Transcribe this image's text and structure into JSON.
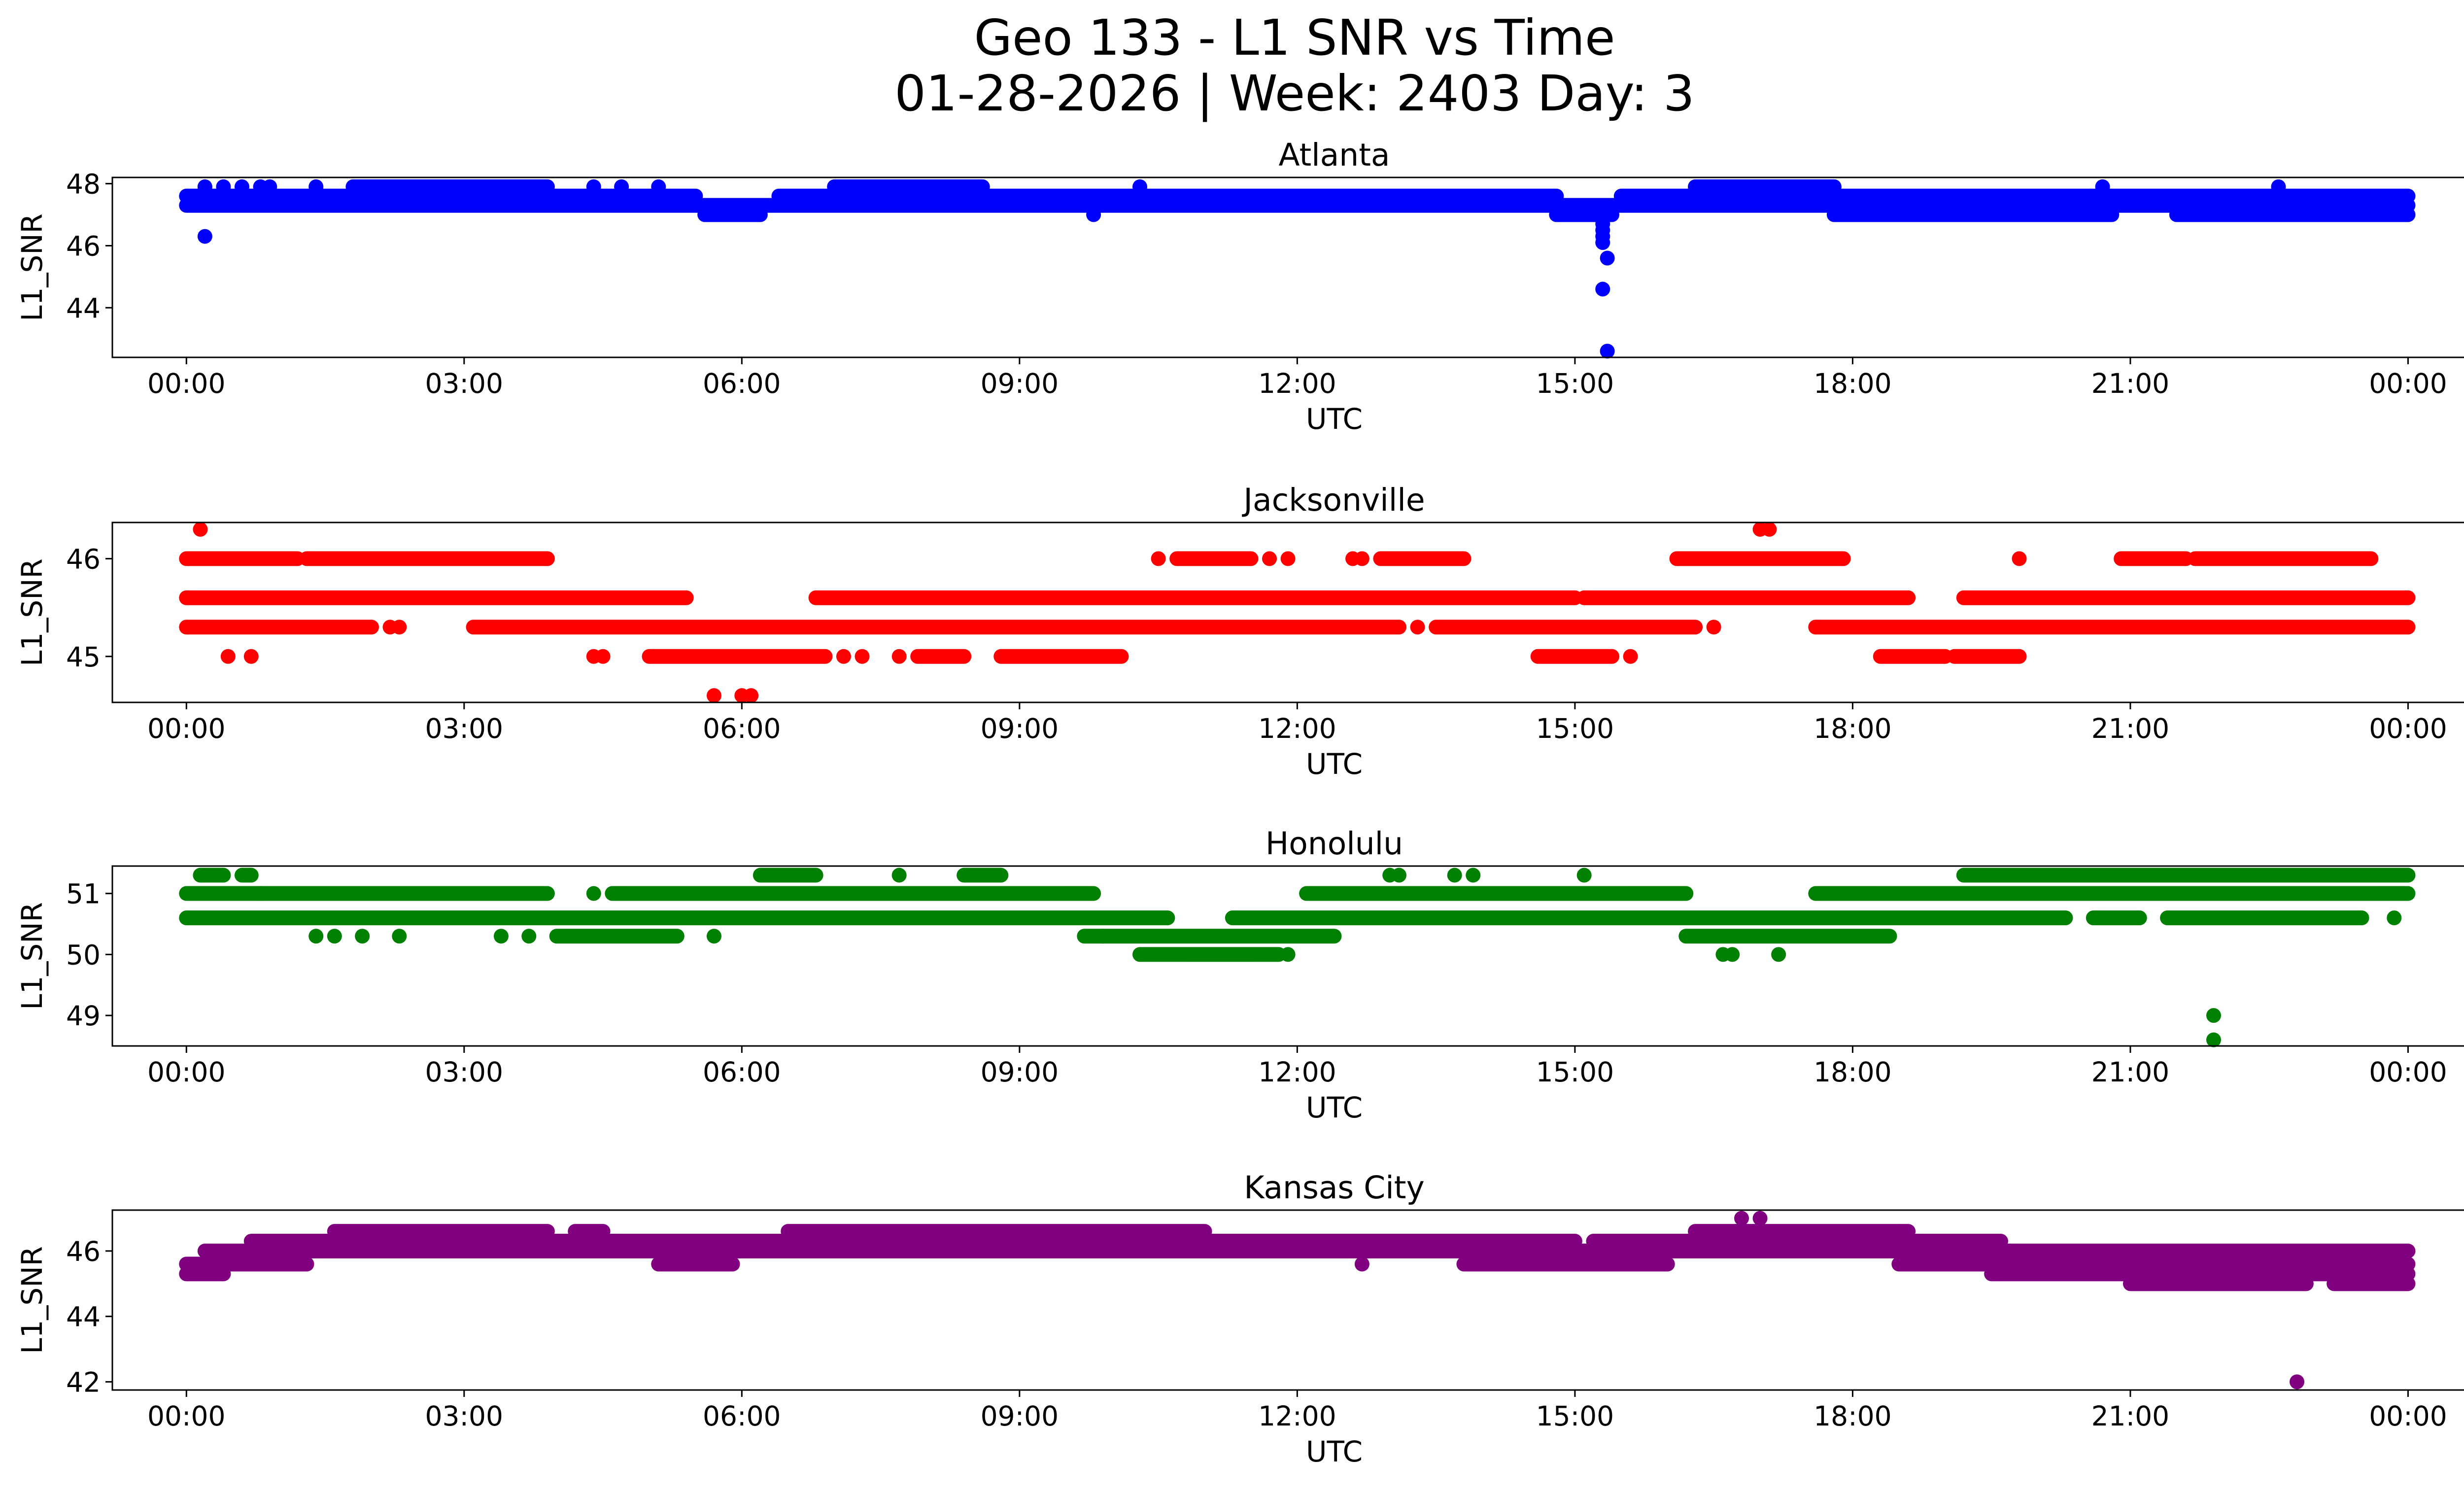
{
  "title_line1": "Geo 133 - L1 SNR vs Time",
  "title_line2": "01-28-2026 | Week: 2403 Day: 3",
  "chart_data": [
    {
      "type": "scatter",
      "title": "Atlanta",
      "xlabel": "UTC",
      "ylabel": "L1_SNR",
      "color": "#0000ff",
      "xlim": [
        -0.8,
        25.6
      ],
      "ylim": [
        42.4,
        48.2
      ],
      "xticks": [
        0,
        3,
        6,
        9,
        12,
        15,
        18,
        21,
        24
      ],
      "xtick_labels": [
        "00:00",
        "03:00",
        "06:00",
        "09:00",
        "12:00",
        "15:00",
        "18:00",
        "21:00",
        "00:00"
      ],
      "yticks": [
        44,
        46,
        48
      ],
      "ytick_labels": [
        "44",
        "46",
        "48"
      ],
      "bands": [
        {
          "y": 47.3,
          "ranges": [
            [
              0,
              24
            ]
          ]
        },
        {
          "y": 47.6,
          "ranges": [
            [
              0,
              5.5
            ],
            [
              6.4,
              14.8
            ],
            [
              15.5,
              24
            ]
          ]
        },
        {
          "y": 47.9,
          "ranges": [
            [
              1.8,
              3.9
            ],
            [
              7.0,
              8.6
            ],
            [
              16.3,
              17.8
            ]
          ]
        },
        {
          "y": 47.0,
          "ranges": [
            [
              5.6,
              6.2
            ],
            [
              14.8,
              15.4
            ],
            [
              17.8,
              20.8
            ],
            [
              21.5,
              24
            ]
          ]
        }
      ],
      "points": [
        {
          "x": 0.2,
          "y": 46.3
        },
        {
          "x": 0.2,
          "y": 47.9
        },
        {
          "x": 0.4,
          "y": 47.9
        },
        {
          "x": 0.6,
          "y": 47.9
        },
        {
          "x": 0.8,
          "y": 47.9
        },
        {
          "x": 0.9,
          "y": 47.9
        },
        {
          "x": 1.4,
          "y": 47.9
        },
        {
          "x": 4.4,
          "y": 47.9
        },
        {
          "x": 4.7,
          "y": 47.9
        },
        {
          "x": 5.1,
          "y": 47.9
        },
        {
          "x": 9.8,
          "y": 47.0
        },
        {
          "x": 10.3,
          "y": 47.9
        },
        {
          "x": 20.7,
          "y": 47.9
        },
        {
          "x": 22.6,
          "y": 47.9
        },
        {
          "x": 15.1,
          "y": 47.0
        },
        {
          "x": 15.3,
          "y": 46.9
        },
        {
          "x": 15.3,
          "y": 46.7
        },
        {
          "x": 15.3,
          "y": 46.5
        },
        {
          "x": 15.3,
          "y": 46.3
        },
        {
          "x": 15.3,
          "y": 46.1
        },
        {
          "x": 15.35,
          "y": 45.6
        },
        {
          "x": 15.3,
          "y": 44.6
        },
        {
          "x": 15.35,
          "y": 42.6
        }
      ]
    },
    {
      "type": "scatter",
      "title": "Jacksonville",
      "xlabel": "UTC",
      "ylabel": "L1_SNR",
      "color": "#ff0000",
      "xlim": [
        -0.8,
        25.6
      ],
      "ylim": [
        44.53,
        46.37
      ],
      "xticks": [
        0,
        3,
        6,
        9,
        12,
        15,
        18,
        21,
        24
      ],
      "xtick_labels": [
        "00:00",
        "03:00",
        "06:00",
        "09:00",
        "12:00",
        "15:00",
        "18:00",
        "21:00",
        "00:00"
      ],
      "yticks": [
        45,
        46
      ],
      "ytick_labels": [
        "45",
        "46"
      ],
      "bands": [
        {
          "y": 46.0,
          "ranges": [
            [
              0,
              1.2
            ],
            [
              1.3,
              3.9
            ],
            [
              10.7,
              11.5
            ],
            [
              12.9,
              13.8
            ],
            [
              16.1,
              17.9
            ],
            [
              20.9,
              21.6
            ],
            [
              21.7,
              23.6
            ]
          ]
        },
        {
          "y": 45.6,
          "ranges": [
            [
              0,
              5.4
            ],
            [
              6.8,
              15.0
            ],
            [
              15.1,
              18.6
            ],
            [
              19.2,
              24
            ]
          ]
        },
        {
          "y": 45.3,
          "ranges": [
            [
              0,
              2.0
            ],
            [
              3.1,
              13.1
            ],
            [
              13.5,
              16.3
            ],
            [
              17.6,
              24
            ]
          ]
        },
        {
          "y": 45.0,
          "ranges": [
            [
              5.0,
              6.9
            ],
            [
              7.9,
              8.4
            ],
            [
              8.8,
              10.1
            ],
            [
              14.6,
              15.4
            ],
            [
              18.3,
              19.0
            ],
            [
              19.1,
              19.8
            ]
          ]
        }
      ],
      "points": [
        {
          "x": 0.15,
          "y": 46.3
        },
        {
          "x": 0.45,
          "y": 45.0
        },
        {
          "x": 0.7,
          "y": 45.0
        },
        {
          "x": 2.2,
          "y": 45.3
        },
        {
          "x": 2.3,
          "y": 45.3
        },
        {
          "x": 4.4,
          "y": 45.0
        },
        {
          "x": 4.5,
          "y": 45.0
        },
        {
          "x": 5.7,
          "y": 44.6
        },
        {
          "x": 6.0,
          "y": 44.6
        },
        {
          "x": 6.1,
          "y": 44.6
        },
        {
          "x": 7.1,
          "y": 45.0
        },
        {
          "x": 7.3,
          "y": 45.0
        },
        {
          "x": 7.7,
          "y": 45.0
        },
        {
          "x": 10.5,
          "y": 46.0
        },
        {
          "x": 11.7,
          "y": 46.0
        },
        {
          "x": 11.9,
          "y": 46.0
        },
        {
          "x": 12.6,
          "y": 46.0
        },
        {
          "x": 12.7,
          "y": 46.0
        },
        {
          "x": 13.3,
          "y": 45.3
        },
        {
          "x": 15.6,
          "y": 45.0
        },
        {
          "x": 16.5,
          "y": 45.3
        },
        {
          "x": 17.0,
          "y": 46.3
        },
        {
          "x": 17.1,
          "y": 46.3
        },
        {
          "x": 19.8,
          "y": 46.0
        }
      ]
    },
    {
      "type": "scatter",
      "title": "Honolulu",
      "xlabel": "UTC",
      "ylabel": "L1_SNR",
      "color": "#008000",
      "xlim": [
        -0.8,
        25.6
      ],
      "ylim": [
        48.5,
        51.45
      ],
      "xticks": [
        0,
        3,
        6,
        9,
        12,
        15,
        18,
        21,
        24
      ],
      "xtick_labels": [
        "00:00",
        "03:00",
        "06:00",
        "09:00",
        "12:00",
        "15:00",
        "18:00",
        "21:00",
        "00:00"
      ],
      "yticks": [
        49,
        50,
        51
      ],
      "ytick_labels": [
        "49",
        "50",
        "51"
      ],
      "bands": [
        {
          "y": 51.3,
          "ranges": [
            [
              0.15,
              0.4
            ],
            [
              0.6,
              0.7
            ],
            [
              6.2,
              6.8
            ],
            [
              8.4,
              8.8
            ],
            [
              19.2,
              24
            ]
          ]
        },
        {
          "y": 51.0,
          "ranges": [
            [
              0,
              3.9
            ],
            [
              4.6,
              9.8
            ],
            [
              12.1,
              16.2
            ],
            [
              17.6,
              24
            ]
          ]
        },
        {
          "y": 50.6,
          "ranges": [
            [
              0,
              10.6
            ],
            [
              11.3,
              20.3
            ],
            [
              20.6,
              21.1
            ],
            [
              21.4,
              23.5
            ]
          ]
        },
        {
          "y": 50.3,
          "ranges": [
            [
              4.0,
              5.3
            ],
            [
              9.7,
              12.4
            ],
            [
              16.2,
              18.4
            ]
          ]
        },
        {
          "y": 50.0,
          "ranges": [
            [
              10.3,
              11.8
            ]
          ]
        }
      ],
      "points": [
        {
          "x": 0.8,
          "y": 51.0
        },
        {
          "x": 1.4,
          "y": 50.3
        },
        {
          "x": 1.6,
          "y": 50.3
        },
        {
          "x": 1.9,
          "y": 50.3
        },
        {
          "x": 2.3,
          "y": 50.3
        },
        {
          "x": 3.4,
          "y": 50.3
        },
        {
          "x": 3.7,
          "y": 50.3
        },
        {
          "x": 4.4,
          "y": 51.0
        },
        {
          "x": 5.7,
          "y": 50.3
        },
        {
          "x": 7.7,
          "y": 51.3
        },
        {
          "x": 9.9,
          "y": 50.3
        },
        {
          "x": 11.9,
          "y": 50.0
        },
        {
          "x": 13.0,
          "y": 51.3
        },
        {
          "x": 13.1,
          "y": 51.3
        },
        {
          "x": 13.7,
          "y": 51.3
        },
        {
          "x": 13.9,
          "y": 51.3
        },
        {
          "x": 15.1,
          "y": 51.3
        },
        {
          "x": 16.6,
          "y": 50.0
        },
        {
          "x": 16.7,
          "y": 50.0
        },
        {
          "x": 17.2,
          "y": 50.0
        },
        {
          "x": 21.9,
          "y": 49.0
        },
        {
          "x": 21.9,
          "y": 48.6
        },
        {
          "x": 23.85,
          "y": 50.6
        }
      ]
    },
    {
      "type": "scatter",
      "title": "Kansas City",
      "xlabel": "UTC",
      "ylabel": "L1_SNR",
      "color": "#800080",
      "xlim": [
        -0.8,
        25.6
      ],
      "ylim": [
        41.75,
        47.25
      ],
      "xticks": [
        0,
        3,
        6,
        9,
        12,
        15,
        18,
        21,
        24
      ],
      "xtick_labels": [
        "00:00",
        "03:00",
        "06:00",
        "09:00",
        "12:00",
        "15:00",
        "18:00",
        "21:00",
        "00:00"
      ],
      "yticks": [
        42,
        44,
        46
      ],
      "ytick_labels": [
        "42",
        "44",
        "46"
      ],
      "bands": [
        {
          "y": 46.6,
          "ranges": [
            [
              1.6,
              3.9
            ],
            [
              4.2,
              4.5
            ],
            [
              6.5,
              11.0
            ],
            [
              16.3,
              18.6
            ]
          ]
        },
        {
          "y": 46.3,
          "ranges": [
            [
              0.7,
              15.0
            ],
            [
              15.2,
              19.6
            ]
          ]
        },
        {
          "y": 46.0,
          "ranges": [
            [
              0.2,
              24
            ]
          ]
        },
        {
          "y": 45.6,
          "ranges": [
            [
              0,
              1.3
            ],
            [
              5.1,
              5.9
            ],
            [
              13.8,
              16.0
            ],
            [
              18.5,
              24
            ]
          ]
        },
        {
          "y": 45.3,
          "ranges": [
            [
              0,
              0.4
            ],
            [
              19.5,
              24
            ]
          ]
        },
        {
          "y": 45.0,
          "ranges": [
            [
              21.0,
              22.9
            ],
            [
              23.2,
              24
            ]
          ]
        }
      ],
      "points": [
        {
          "x": 12.7,
          "y": 45.6
        },
        {
          "x": 16.8,
          "y": 47.0
        },
        {
          "x": 17.0,
          "y": 47.0
        },
        {
          "x": 23.0,
          "y": 46.0
        },
        {
          "x": 22.8,
          "y": 42.0
        },
        {
          "x": 20.7,
          "y": 46.0
        },
        {
          "x": 18.5,
          "y": 46.6
        }
      ]
    }
  ]
}
